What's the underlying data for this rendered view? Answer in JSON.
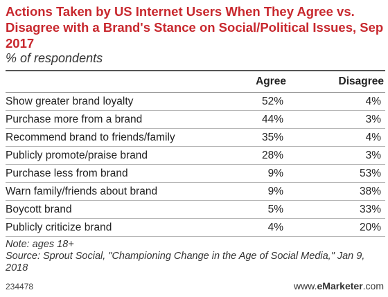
{
  "chart_data": {
    "type": "table",
    "title": "Actions Taken by US Internet Users When They Agree vs. Disagree with a Brand's Stance on Social/Political Issues, Sep 2017",
    "subtitle": "% of respondents",
    "columns": [
      "Agree",
      "Disagree"
    ],
    "rows": [
      {
        "label": "Show greater brand loyalty",
        "agree": "52%",
        "disagree": "4%"
      },
      {
        "label": "Purchase more from a brand",
        "agree": "44%",
        "disagree": "3%"
      },
      {
        "label": "Recommend brand to friends/family",
        "agree": "35%",
        "disagree": "4%"
      },
      {
        "label": "Publicly promote/praise brand",
        "agree": "28%",
        "disagree": "3%"
      },
      {
        "label": "Purchase less from brand",
        "agree": "9%",
        "disagree": "53%"
      },
      {
        "label": "Warn family/friends about brand",
        "agree": "9%",
        "disagree": "38%"
      },
      {
        "label": "Boycott brand",
        "agree": "5%",
        "disagree": "33%"
      },
      {
        "label": "Publicly criticize brand",
        "agree": "4%",
        "disagree": "20%"
      }
    ],
    "note": "Note: ages 18+",
    "source": "Source: Sprout Social, \"Championing Change in the Age of Social Media,\" Jan 9, 2018"
  },
  "footer": {
    "chart_id": "234478",
    "site_prefix": "www.",
    "site_brand": "eMarketer",
    "site_suffix": ".com"
  },
  "colors": {
    "title": "#c8282e"
  }
}
